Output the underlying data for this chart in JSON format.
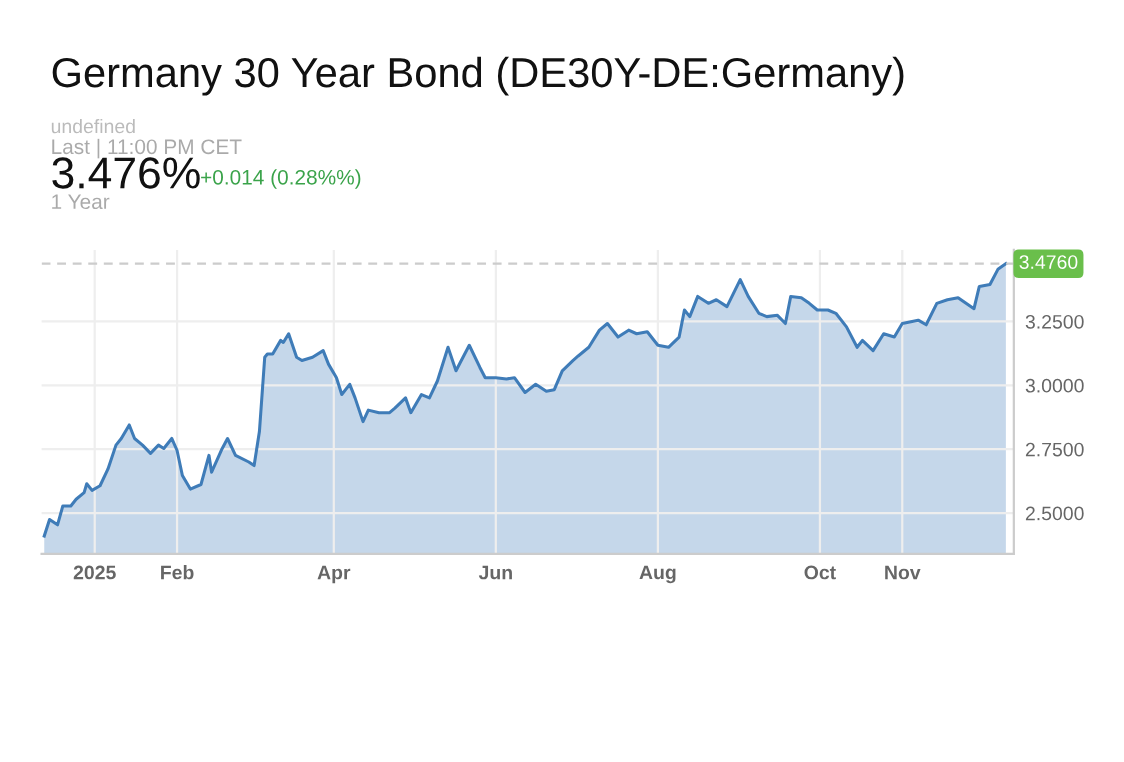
{
  "chart_data": {
    "type": "area",
    "title": "Germany 30 Year Bond (DE30Y-DE:Germany)",
    "annotations": [
      "undefined",
      "Last | 11:00 PM CET",
      "3.476%",
      "+0.014 (0.28%%)",
      "1 Year"
    ],
    "x": [
      "2024-12-13",
      "2024-12-15",
      "2024-12-18",
      "2024-12-20",
      "2024-12-23",
      "2024-12-25",
      "2024-12-28",
      "2024-12-29",
      "2024-12-31",
      "2025-01-03",
      "2025-01-06",
      "2025-01-09",
      "2025-01-11",
      "2025-01-14",
      "2025-01-16",
      "2025-01-19",
      "2025-01-22",
      "2025-01-25",
      "2025-01-27",
      "2025-01-30",
      "2025-02-01",
      "2025-02-03",
      "2025-02-06",
      "2025-02-10",
      "2025-02-13",
      "2025-02-14",
      "2025-02-18",
      "2025-02-20",
      "2025-02-23",
      "2025-02-28",
      "2025-03-02",
      "2025-03-04",
      "2025-03-06",
      "2025-03-07",
      "2025-03-09",
      "2025-03-12",
      "2025-03-13",
      "2025-03-15",
      "2025-03-18",
      "2025-03-20",
      "2025-03-24",
      "2025-03-28",
      "2025-03-30",
      "2025-04-02",
      "2025-04-04",
      "2025-04-07",
      "2025-04-09",
      "2025-04-12",
      "2025-04-14",
      "2025-04-18",
      "2025-04-22",
      "2025-04-24",
      "2025-04-28",
      "2025-04-30",
      "2025-05-04",
      "2025-05-07",
      "2025-05-10",
      "2025-05-14",
      "2025-05-17",
      "2025-05-19",
      "2025-05-22",
      "2025-05-26",
      "2025-05-28",
      "2025-06-01",
      "2025-06-05",
      "2025-06-08",
      "2025-06-12",
      "2025-06-16",
      "2025-06-20",
      "2025-06-23",
      "2025-06-26",
      "2025-06-30",
      "2025-07-02",
      "2025-07-06",
      "2025-07-10",
      "2025-07-13",
      "2025-07-17",
      "2025-07-21",
      "2025-07-24",
      "2025-07-28",
      "2025-08-01",
      "2025-08-05",
      "2025-08-09",
      "2025-08-11",
      "2025-08-13",
      "2025-08-16",
      "2025-08-20",
      "2025-08-23",
      "2025-08-27",
      "2025-09-01",
      "2025-09-04",
      "2025-09-08",
      "2025-09-11",
      "2025-09-15",
      "2025-09-18",
      "2025-09-20",
      "2025-09-24",
      "2025-09-27",
      "2025-09-30",
      "2025-10-04",
      "2025-10-07",
      "2025-10-11",
      "2025-10-15",
      "2025-10-17",
      "2025-10-21",
      "2025-10-25",
      "2025-10-29",
      "2025-11-01",
      "2025-11-07",
      "2025-11-10",
      "2025-11-14",
      "2025-11-18",
      "2025-11-22",
      "2025-11-25",
      "2025-11-28",
      "2025-11-30",
      "2025-12-04",
      "2025-12-07",
      "2025-12-10"
    ],
    "series": [
      {
        "color": "#3f7cb8",
        "values": [
          2.41,
          2.475,
          2.454,
          2.528,
          2.528,
          2.554,
          2.58,
          2.615,
          2.589,
          2.607,
          2.673,
          2.766,
          2.792,
          2.845,
          2.792,
          2.766,
          2.734,
          2.766,
          2.753,
          2.792,
          2.745,
          2.647,
          2.594,
          2.612,
          2.726,
          2.66,
          2.753,
          2.792,
          2.726,
          2.7,
          2.686,
          2.819,
          3.11,
          3.123,
          3.123,
          3.176,
          3.168,
          3.202,
          3.11,
          3.097,
          3.11,
          3.136,
          3.083,
          3.03,
          2.964,
          3.004,
          2.951,
          2.858,
          2.903,
          2.893,
          2.893,
          2.911,
          2.951,
          2.893,
          2.964,
          2.951,
          3.017,
          3.149,
          3.057,
          3.097,
          3.157,
          3.07,
          3.03,
          3.03,
          3.025,
          3.03,
          2.972,
          3.004,
          2.977,
          2.983,
          3.057,
          3.097,
          3.115,
          3.149,
          3.216,
          3.242,
          3.189,
          3.216,
          3.202,
          3.21,
          3.157,
          3.149,
          3.189,
          3.295,
          3.269,
          3.348,
          3.321,
          3.335,
          3.308,
          3.414,
          3.348,
          3.282,
          3.269,
          3.274,
          3.242,
          3.348,
          3.343,
          3.321,
          3.295,
          3.295,
          3.282,
          3.229,
          3.149,
          3.176,
          3.136,
          3.202,
          3.189,
          3.242,
          3.255,
          3.237,
          3.321,
          3.335,
          3.343,
          3.321,
          3.3,
          3.387,
          3.395,
          3.454,
          3.476
        ]
      }
    ],
    "xlim": [
      "2024-12-12",
      "2025-12-13"
    ],
    "xticks": [
      {
        "value": "2025-01-01",
        "label": "2025"
      },
      {
        "value": "2025-02-01",
        "label": "Feb"
      },
      {
        "value": "2025-04-01",
        "label": "Apr"
      },
      {
        "value": "2025-06-01",
        "label": "Jun"
      },
      {
        "value": "2025-08-01",
        "label": "Aug"
      },
      {
        "value": "2025-10-01",
        "label": "Oct"
      },
      {
        "value": "2025-11-01",
        "label": "Nov"
      }
    ],
    "ylim": [
      2.34,
      3.53
    ],
    "yticks": [
      {
        "value": 2.5,
        "label": "2.5000"
      },
      {
        "value": 2.75,
        "label": "2.7500"
      },
      {
        "value": 3.0,
        "label": "3.0000"
      },
      {
        "value": 3.25,
        "label": "3.2500"
      }
    ],
    "ref_lines": [
      {
        "axis": "y",
        "value": 3.476,
        "label": "3.4760",
        "color": "#cccccc",
        "line_style": "dashed"
      }
    ],
    "grid": true
  }
}
